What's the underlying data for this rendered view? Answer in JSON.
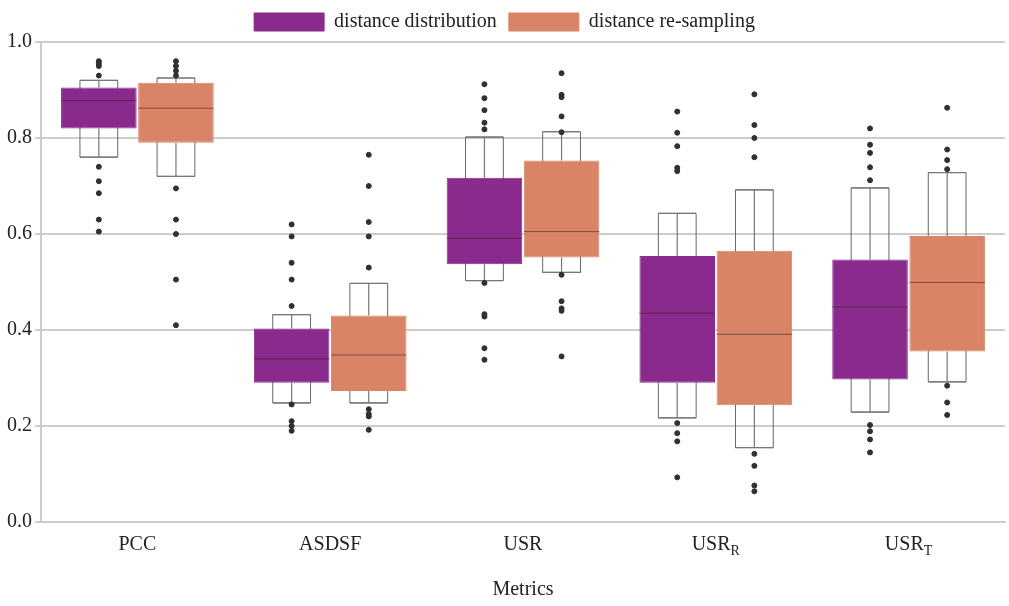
{
  "chart_data": {
    "type": "box",
    "categories": [
      "PCC",
      "ASDSF",
      "USR",
      "USR$_{R}$",
      "USR$_{T}$"
    ],
    "xlabel": "Metrics",
    "ylim": [
      0,
      1
    ],
    "yticks": [
      {
        "value": 0,
        "label": "0.0"
      },
      {
        "value": 0.2,
        "label": "0.2"
      },
      {
        "value": 0.4,
        "label": "0.4"
      },
      {
        "value": 0.6,
        "label": "0.6"
      },
      {
        "value": 0.8,
        "label": "0.8"
      },
      {
        "value": 1,
        "label": "1.0"
      }
    ],
    "grid": "y",
    "legend": "top",
    "series": [
      {
        "name": "distance distribution",
        "color": "#8a2a8c",
        "boxes": [
          {
            "low": 0.76,
            "q1": 0.82,
            "median": 0.878,
            "q3": 0.905,
            "high": 0.92,
            "outliers": [
              0.96,
              0.955,
              0.95,
              0.93,
              0.74,
              0.71,
              0.685,
              0.63,
              0.605
            ]
          },
          {
            "low": 0.248,
            "q1": 0.29,
            "median": 0.34,
            "q3": 0.403,
            "high": 0.432,
            "outliers": [
              0.62,
              0.595,
              0.54,
              0.505,
              0.45,
              0.245,
              0.21,
              0.2,
              0.19
            ]
          },
          {
            "low": 0.503,
            "q1": 0.537,
            "median": 0.591,
            "q3": 0.717,
            "high": 0.802,
            "outliers": [
              0.912,
              0.883,
              0.858,
              0.832,
              0.818,
              0.498,
              0.433,
              0.428,
              0.362,
              0.338
            ]
          },
          {
            "low": 0.217,
            "q1": 0.29,
            "median": 0.435,
            "q3": 0.554,
            "high": 0.643,
            "outliers": [
              0.855,
              0.811,
              0.783,
              0.738,
              0.731,
              0.206,
              0.185,
              0.168,
              0.093
            ]
          },
          {
            "low": 0.229,
            "q1": 0.297,
            "median": 0.448,
            "q3": 0.547,
            "high": 0.696,
            "outliers": [
              0.82,
              0.786,
              0.769,
              0.739,
              0.712,
              0.202,
              0.189,
              0.172,
              0.145
            ]
          }
        ]
      },
      {
        "name": "distance re-sampling",
        "color": "#d98466",
        "boxes": [
          {
            "low": 0.72,
            "q1": 0.79,
            "median": 0.862,
            "q3": 0.915,
            "high": 0.925,
            "outliers": [
              0.96,
              0.95,
              0.94,
              0.93,
              0.695,
              0.63,
              0.6,
              0.505,
              0.41
            ]
          },
          {
            "low": 0.248,
            "q1": 0.273,
            "median": 0.348,
            "q3": 0.43,
            "high": 0.497,
            "outliers": [
              0.765,
              0.7,
              0.625,
              0.595,
              0.53,
              0.235,
              0.225,
              0.22,
              0.192
            ]
          },
          {
            "low": 0.52,
            "q1": 0.551,
            "median": 0.605,
            "q3": 0.753,
            "high": 0.813,
            "outliers": [
              0.935,
              0.89,
              0.885,
              0.845,
              0.812,
              0.515,
              0.46,
              0.445,
              0.44,
              0.345
            ]
          },
          {
            "low": 0.155,
            "q1": 0.243,
            "median": 0.391,
            "q3": 0.565,
            "high": 0.692,
            "outliers": [
              0.891,
              0.827,
              0.8,
              0.76,
              0.142,
              0.117,
              0.076,
              0.064
            ]
          },
          {
            "low": 0.292,
            "q1": 0.355,
            "median": 0.499,
            "q3": 0.596,
            "high": 0.728,
            "outliers": [
              0.863,
              0.776,
              0.754,
              0.735,
              0.284,
              0.249,
              0.223
            ]
          }
        ]
      }
    ]
  }
}
